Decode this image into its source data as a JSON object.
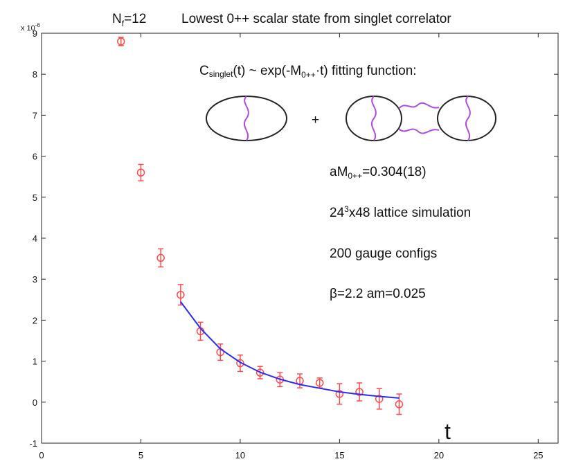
{
  "chart_data": {
    "type": "scatter",
    "title": "Lowest 0++ scalar state from singlet correlator",
    "flavors": {
      "main": "N",
      "sub": "f",
      "rest": "=12"
    },
    "x_label": "t",
    "y_exponent": {
      "base": "x 10",
      "power": "-6"
    },
    "formula": {
      "c": "C",
      "c_sub": "singlet",
      "mid": "(t) ~ exp(-M",
      "m_sub": "0++",
      "end": "·t)  fitting function:"
    },
    "plus": "+",
    "mass": {
      "main": "aM",
      "sub": "0++",
      "rest": "=0.304(18)"
    },
    "lattice": {
      "main": "24",
      "sup": "3",
      "rest": "x48 lattice  simulation"
    },
    "configs": "200 gauge configs",
    "params": "β=2.2   am=0.025",
    "xlim": [
      0,
      26
    ],
    "xticks": [
      0,
      5,
      10,
      15,
      20,
      25
    ],
    "ylim": [
      -1,
      9
    ],
    "yticks": [
      -1,
      0,
      1,
      2,
      3,
      4,
      5,
      6,
      7,
      8,
      9
    ],
    "series": [
      {
        "color": "#ff4a4a",
        "marker": "circle",
        "x": [
          4,
          5,
          6,
          7,
          8,
          9,
          10,
          11,
          12,
          13,
          14,
          15,
          16,
          17,
          18
        ],
        "values": [
          8.8,
          5.6,
          3.52,
          2.62,
          1.73,
          1.22,
          0.95,
          0.72,
          0.55,
          0.52,
          0.47,
          0.2,
          0.25,
          0.08,
          -0.05
        ],
        "errors": [
          0.1,
          0.2,
          0.22,
          0.25,
          0.22,
          0.2,
          0.2,
          0.15,
          0.17,
          0.17,
          0.12,
          0.25,
          0.22,
          0.25,
          0.25
        ]
      },
      {
        "color": "#2a2aff",
        "marker": "line",
        "x": [
          7,
          8,
          9,
          10,
          11,
          12,
          13,
          14,
          15,
          16,
          17,
          18
        ],
        "values": [
          2.45,
          1.8,
          1.3,
          0.97,
          0.73,
          0.56,
          0.43,
          0.34,
          0.25,
          0.19,
          0.14,
          0.1
        ]
      }
    ]
  }
}
